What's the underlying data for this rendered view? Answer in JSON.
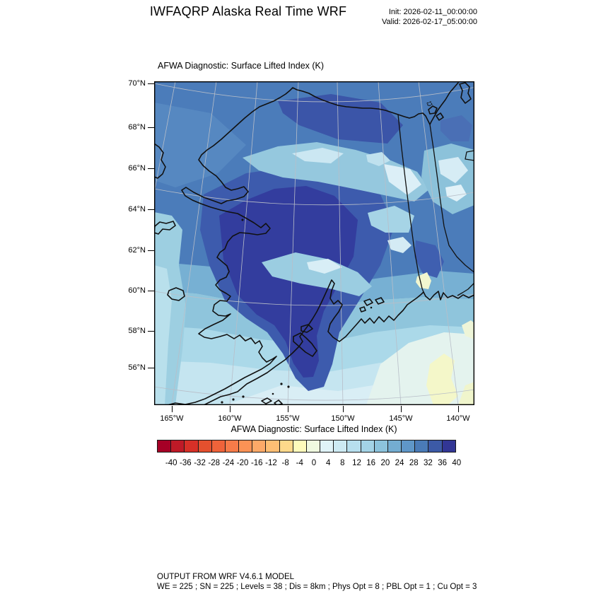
{
  "header": {
    "title": "IWFAQRP Alaska Real Time WRF",
    "init_label": "Init: 2026-02-11_00:00:00",
    "valid_label": "Valid: 2026-02-17_05:00:00"
  },
  "map": {
    "subtitle": "AFWA Diagnostic: Surface Lifted Index   (K)",
    "xaxis_title": "AFWA Diagnostic: Surface Lifted Index  (K)",
    "lat_ticks": [
      "70°N",
      "68°N",
      "66°N",
      "64°N",
      "62°N",
      "60°N",
      "58°N",
      "56°N"
    ],
    "lon_ticks": [
      "165°W",
      "160°W",
      "155°W",
      "150°W",
      "145°W",
      "140°W"
    ]
  },
  "colorbar": {
    "units": "K",
    "boundary_labels": [
      "-40",
      "-36",
      "-32",
      "-28",
      "-24",
      "-20",
      "-16",
      "-12",
      "-8",
      "-4",
      "0",
      "4",
      "8",
      "12",
      "16",
      "20",
      "24",
      "28",
      "32",
      "36",
      "40"
    ],
    "cell_colors": [
      "#a50026",
      "#bf1a27",
      "#d73027",
      "#e4502e",
      "#ef633a",
      "#f67b49",
      "#fb9255",
      "#fda968",
      "#fdbe74",
      "#fed98b",
      "#fefbbb",
      "#f0f9e0",
      "#e0f3f8",
      "#cdeaf3",
      "#b7dfee",
      "#a3d3e6",
      "#8cc3dc",
      "#74add1",
      "#5f97c8",
      "#4a7bb7",
      "#3c5aa6",
      "#323695"
    ]
  },
  "chart_data": {
    "type": "heatmap",
    "title": "AFWA Diagnostic: Surface Lifted Index (K)",
    "projection_region": "Alaska",
    "lat_range_deg_n": [
      54,
      71
    ],
    "lon_range_deg_w": [
      168,
      138
    ],
    "contour_levels": [
      -40,
      -36,
      -32,
      -28,
      -24,
      -20,
      -16,
      -12,
      -8,
      -4,
      0,
      4,
      8,
      12,
      16,
      20,
      24,
      28,
      32,
      36,
      40
    ],
    "palette": "red-yellow-blue (RdYlBu)",
    "field_summary": "Surface lifted index mostly 16-44 K (stable, blues) over Alaska; darkest navy (36-44) over interior/southwest Alaska; lighter blues (8-20) over Brooks Range, Alaska Range and Gulf of Alaska; near-zero pale yellow patches in southeast Gulf of Alaska near map bottom-right"
  },
  "footer": {
    "line1": "OUTPUT FROM WRF V4.6.1 MODEL",
    "line2": "WE = 225 ; SN = 225 ; Levels = 38 ; Dis = 8km ; Phys Opt = 8 ; PBL Opt = 1 ; Cu Opt = 3"
  }
}
